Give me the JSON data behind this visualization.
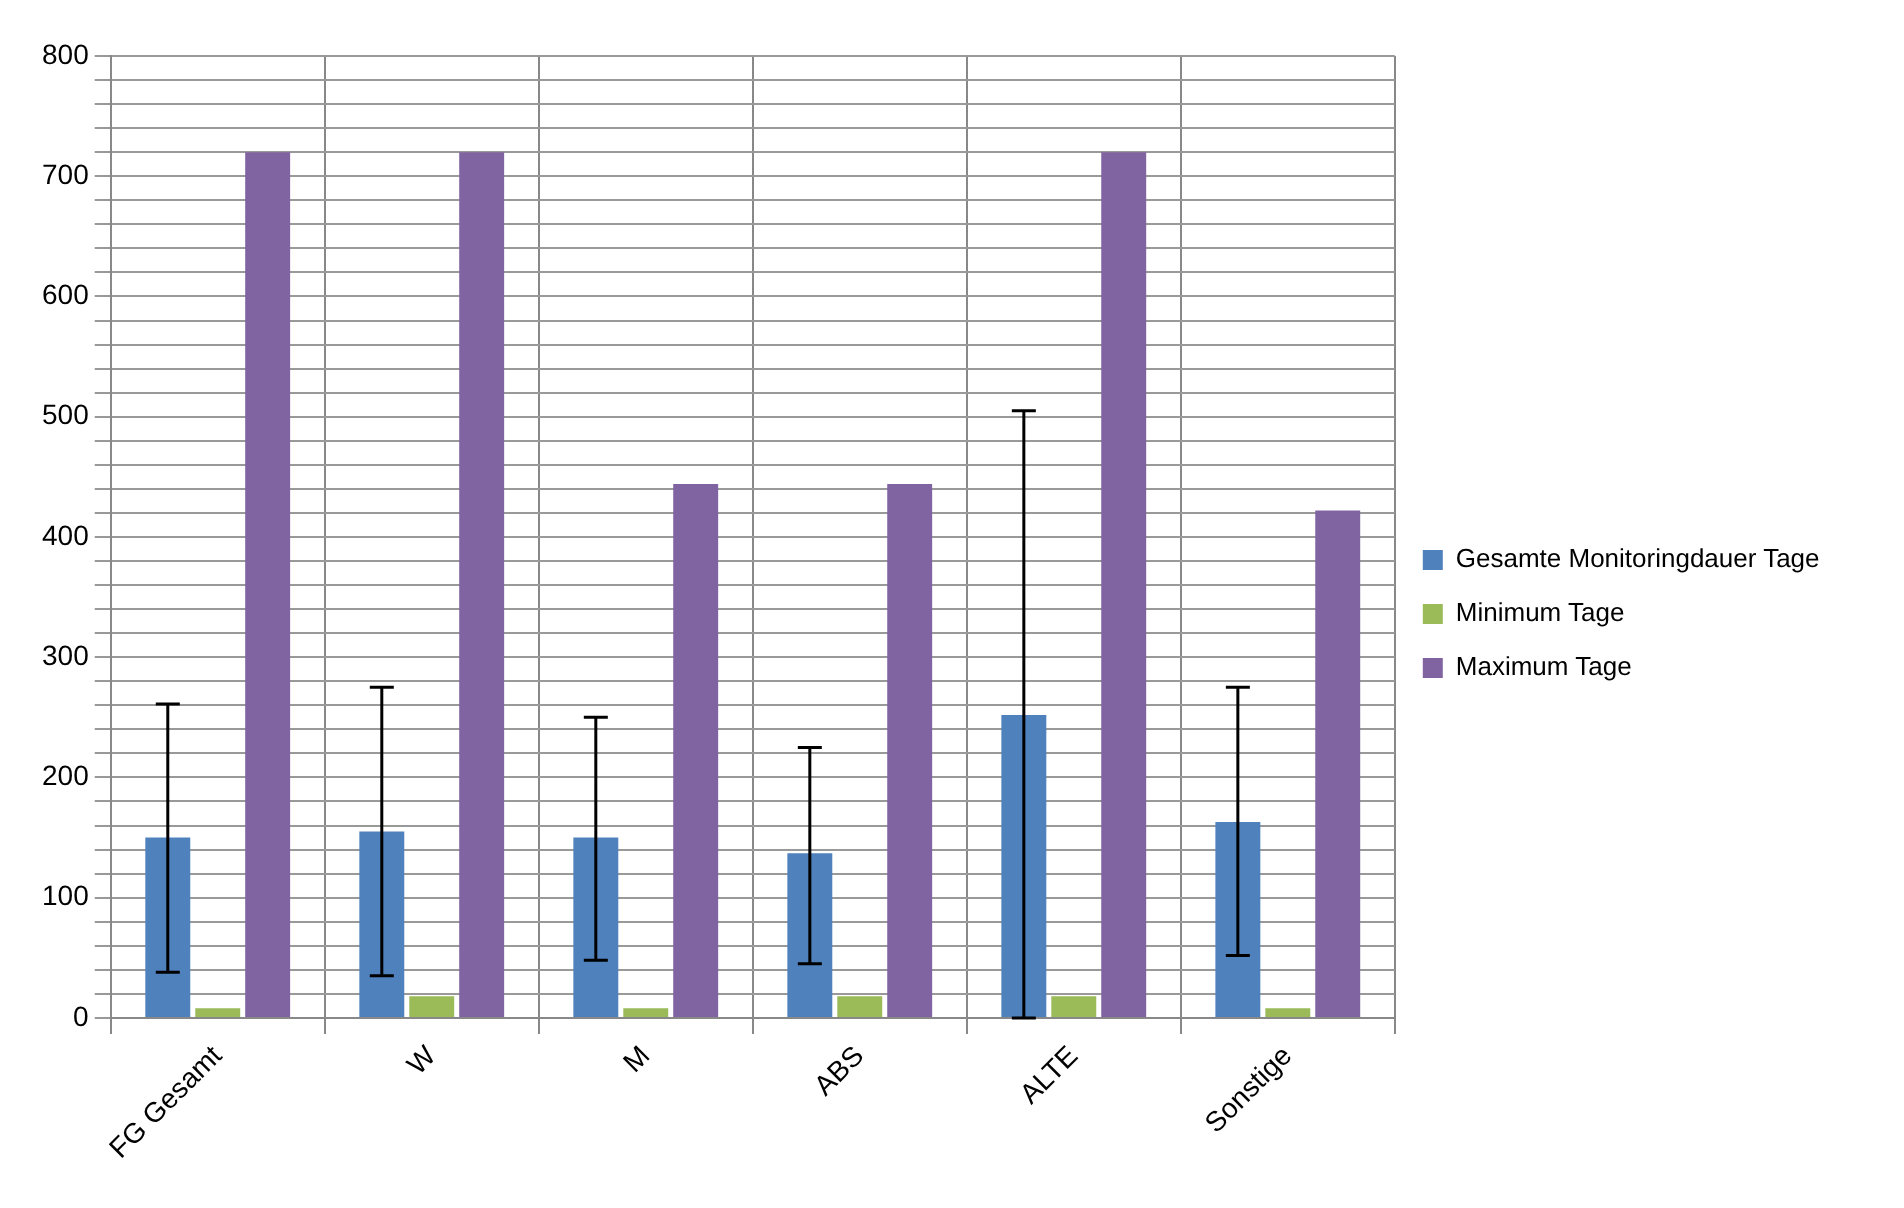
{
  "chart_data": {
    "type": "bar",
    "categories": [
      "FG Gesamt",
      "W",
      "M",
      "ABS",
      "ALTE",
      "Sonstige"
    ],
    "series": [
      {
        "name": "Gesamte Monitoringdauer Tage",
        "color": "#4f81bd",
        "values": [
          150,
          155,
          150,
          137,
          252,
          163
        ],
        "errors": [
          [
            38,
            261
          ],
          [
            35,
            275
          ],
          [
            48,
            250
          ],
          [
            45,
            225
          ],
          [
            0,
            505
          ],
          [
            52,
            275
          ]
        ]
      },
      {
        "name": "Minimum Tage",
        "color": "#9bbb59",
        "values": [
          8,
          18,
          8,
          18,
          18,
          8
        ]
      },
      {
        "name": "Maximum Tage",
        "color": "#8064a2",
        "values": [
          720,
          720,
          444,
          444,
          720,
          422
        ]
      }
    ],
    "ylim": [
      0,
      800
    ],
    "yticks": [
      0,
      {
        "value": 20,
        "label": null
      },
      {
        "value": 40,
        "label": null
      },
      {
        "value": 60,
        "label": null
      },
      {
        "value": 80,
        "label": null
      },
      100,
      {
        "value": 120,
        "label": null
      },
      {
        "value": 140,
        "label": null
      },
      {
        "value": 160,
        "label": null
      },
      {
        "value": 180,
        "label": null
      },
      200,
      {
        "value": 220,
        "label": null
      },
      {
        "value": 240,
        "label": null
      },
      {
        "value": 260,
        "label": null
      },
      {
        "value": 280,
        "label": null
      },
      300,
      {
        "value": 320,
        "label": null
      },
      {
        "value": 340,
        "label": null
      },
      {
        "value": 360,
        "label": null
      },
      {
        "value": 380,
        "label": null
      },
      400,
      {
        "value": 420,
        "label": null
      },
      {
        "value": 440,
        "label": null
      },
      {
        "value": 460,
        "label": null
      },
      {
        "value": 480,
        "label": null
      },
      500,
      {
        "value": 520,
        "label": null
      },
      {
        "value": 540,
        "label": null
      },
      {
        "value": 560,
        "label": null
      },
      {
        "value": 580,
        "label": null
      },
      600,
      {
        "value": 620,
        "label": null
      },
      {
        "value": 640,
        "label": null
      },
      {
        "value": 660,
        "label": null
      },
      {
        "value": 680,
        "label": null
      },
      700,
      {
        "value": 720,
        "label": null
      },
      {
        "value": 740,
        "label": null
      },
      {
        "value": 760,
        "label": null
      },
      {
        "value": 780,
        "label": null
      },
      800
    ],
    "grid": true,
    "legend": "right"
  }
}
